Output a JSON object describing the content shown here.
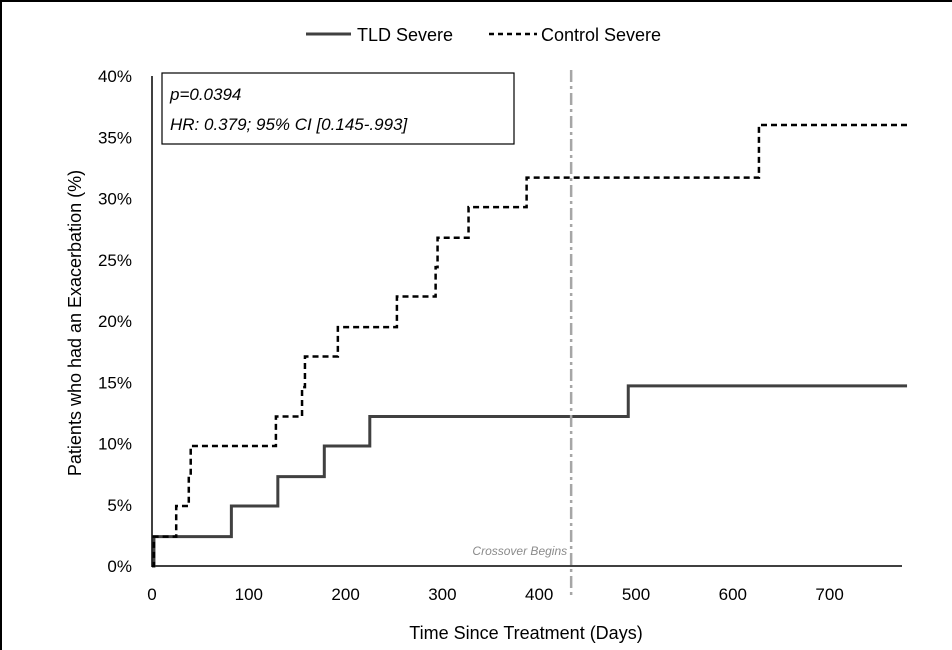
{
  "chart_data": {
    "type": "line",
    "xlabel": "Time Since Treatment (Days)",
    "ylabel": "Patients who had an Exacerbation (%)",
    "xlim": [
      0,
      780
    ],
    "ylim": [
      0,
      40
    ],
    "x_ticks": [
      "0",
      "100",
      "200",
      "300",
      "400",
      "500",
      "600",
      "700"
    ],
    "y_ticks": [
      "0%",
      "5%",
      "10%",
      "15%",
      "20%",
      "25%",
      "30%",
      "35%",
      "40%"
    ],
    "legend_position": "top-center",
    "grid": false,
    "series": [
      {
        "name": "TLD Severe",
        "style": "solid",
        "color": "#404040",
        "step_points": [
          [
            0,
            0
          ],
          [
            2,
            2.4
          ],
          [
            82,
            4.9
          ],
          [
            130,
            7.3
          ],
          [
            178,
            9.8
          ],
          [
            225,
            12.2
          ],
          [
            492,
            14.7
          ],
          [
            780,
            14.7
          ]
        ]
      },
      {
        "name": "Control Severe",
        "style": "dashed",
        "color": "#000000",
        "step_points": [
          [
            0,
            0
          ],
          [
            2,
            2.4
          ],
          [
            25,
            4.9
          ],
          [
            38,
            7.3
          ],
          [
            40,
            9.8
          ],
          [
            128,
            12.2
          ],
          [
            155,
            14.6
          ],
          [
            158,
            17.1
          ],
          [
            192,
            19.5
          ],
          [
            253,
            22.0
          ],
          [
            293,
            24.4
          ],
          [
            295,
            26.8
          ],
          [
            327,
            29.3
          ],
          [
            387,
            31.7
          ],
          [
            627,
            36.0
          ],
          [
            780,
            36.0
          ]
        ]
      }
    ],
    "vertical_line": {
      "x": 433,
      "label": "Crossover Begins",
      "style": "dash-dot",
      "color": "#a6a6a6"
    },
    "annotation_box": {
      "line1": "p=0.0394",
      "line2": "HR: 0.379; 95% CI [0.145-.993]"
    }
  }
}
